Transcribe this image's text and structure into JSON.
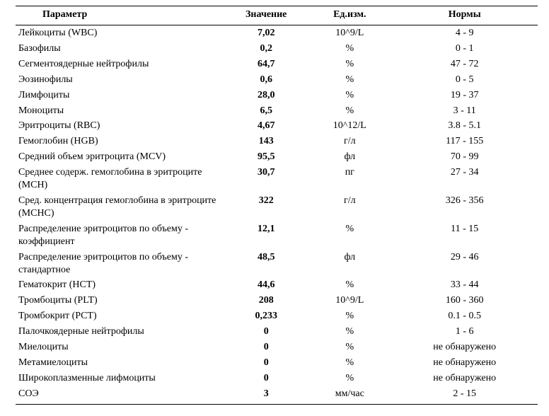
{
  "table": {
    "type": "table",
    "headers": {
      "param": "Параметр",
      "value": "Значение",
      "unit": "Ед.изм.",
      "norm": "Нормы"
    },
    "style": {
      "font_family": "Times New Roman",
      "header_fontsize_pt": 11,
      "body_fontsize_pt": 11,
      "rule_color": "#000000",
      "background_color": "#ffffff",
      "text_color": "#000000",
      "column_widths_pct": [
        40,
        16,
        16,
        28
      ],
      "value_bold": true
    },
    "rows": [
      {
        "param": "Лейкоциты (WBC)",
        "value": "7,02",
        "unit": "10^9/L",
        "norm": "4 - 9"
      },
      {
        "param": "Базофилы",
        "value": "0,2",
        "unit": "%",
        "norm": "0 - 1"
      },
      {
        "param": "Сегментоядерные нейтрофилы",
        "value": "64,7",
        "unit": "%",
        "norm": "47 - 72"
      },
      {
        "param": "Эозинофилы",
        "value": "0,6",
        "unit": "%",
        "norm": "0 - 5"
      },
      {
        "param": "Лимфоциты",
        "value": "28,0",
        "unit": "%",
        "norm": "19 - 37"
      },
      {
        "param": "Моноциты",
        "value": "6,5",
        "unit": "%",
        "norm": "3 - 11"
      },
      {
        "param": "Эритроциты (RBC)",
        "value": "4,67",
        "unit": "10^12/L",
        "norm": "3.8 - 5.1"
      },
      {
        "param": "Гемоглобин (HGB)",
        "value": "143",
        "unit": "г/л",
        "norm": "117 - 155"
      },
      {
        "param": "Средний объем эритроцита (MCV)",
        "value": "95,5",
        "unit": "фл",
        "norm": "70 - 99"
      },
      {
        "param": "Среднее содерж. гемоглобина в эритроците (MCH)",
        "value": "30,7",
        "unit": "пг",
        "norm": "27 - 34"
      },
      {
        "param": "Сред. концентрация гемоглобина в эритроците (MCHC)",
        "value": "322",
        "unit": "г/л",
        "norm": "326 - 356"
      },
      {
        "param": "Распределение эритроцитов по объему - коэффициент",
        "value": "12,1",
        "unit": "%",
        "norm": "11 - 15"
      },
      {
        "param": "Распределение эритроцитов по объему - стандартное",
        "value": "48,5",
        "unit": "фл",
        "norm": "29 - 46"
      },
      {
        "param": "Гематокрит (HCT)",
        "value": "44,6",
        "unit": "%",
        "norm": "33 - 44"
      },
      {
        "param": "Тромбоциты (PLT)",
        "value": "208",
        "unit": "10^9/L",
        "norm": "160 - 360"
      },
      {
        "param": "Тромбокрит (PCT)",
        "value": "0,233",
        "unit": "%",
        "norm": "0.1 - 0.5"
      },
      {
        "param": "Палочкоядерные нейтрофилы",
        "value": "0",
        "unit": "%",
        "norm": "1 - 6"
      },
      {
        "param": "Миелоциты",
        "value": "0",
        "unit": "%",
        "norm": "не обнаружено"
      },
      {
        "param": "Метамиелоциты",
        "value": "0",
        "unit": "%",
        "norm": "не обнаружено"
      },
      {
        "param": "Широкоплазменные лифмоциты",
        "value": "0",
        "unit": "%",
        "norm": "не обнаружено"
      },
      {
        "param": "СОЭ",
        "value": "3",
        "unit": "мм/час",
        "norm": "2 - 15"
      }
    ]
  }
}
